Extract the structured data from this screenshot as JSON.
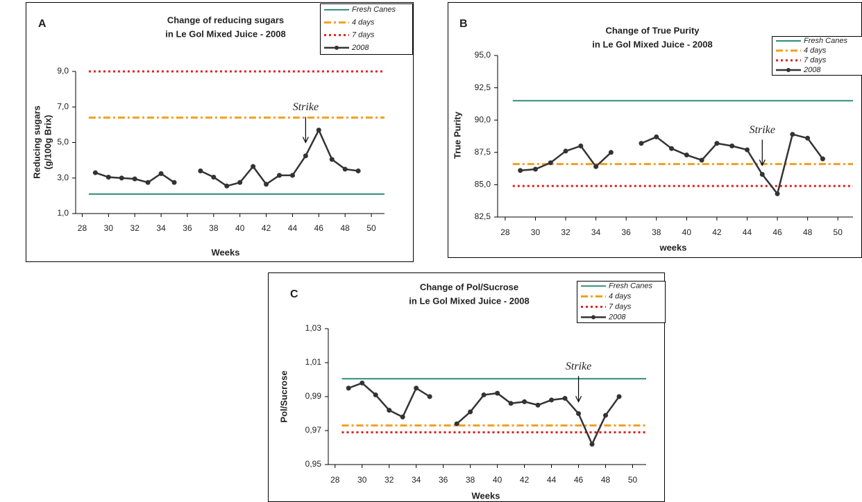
{
  "chart_data": [
    {
      "type": "line",
      "panel": "A",
      "title": [
        "Change of reducing sugars",
        "in Le Gol Mixed Juice - 2008"
      ],
      "xlabel": "Weeks",
      "ylabel": [
        "Reducing sugars",
        "(g/100g Brix)"
      ],
      "xlim": [
        27.5,
        51
      ],
      "xticks": [
        28,
        30,
        32,
        34,
        36,
        38,
        40,
        42,
        44,
        46,
        48,
        50
      ],
      "ylim": [
        1,
        9
      ],
      "yticks": [
        {
          "value": 1,
          "label": "1,0"
        },
        {
          "value": 3,
          "label": "3,0"
        },
        {
          "value": 5,
          "label": "5,0"
        },
        {
          "value": 7,
          "label": "7,0"
        },
        {
          "value": 9,
          "label": "9,0"
        }
      ],
      "legend": "upper right",
      "series": [
        {
          "name": "Fresh Canes",
          "color": "#2e8b7a",
          "style": "solid",
          "x": [
            28.5,
            51
          ],
          "values": [
            2.1,
            2.1
          ]
        },
        {
          "name": "4 days",
          "color": "#f0a020",
          "style": "dashdot",
          "x": [
            28.5,
            51
          ],
          "values": [
            6.4,
            6.4
          ]
        },
        {
          "name": "7 days",
          "color": "#e02020",
          "style": "dotted",
          "x": [
            28.5,
            51
          ],
          "values": [
            9.0,
            9.0
          ]
        },
        {
          "name": "2008",
          "color": "#333333",
          "style": "marker",
          "x": [
            29,
            30,
            31,
            32,
            33,
            34,
            35,
            36,
            37,
            38,
            39,
            40,
            41,
            42,
            43,
            44,
            45,
            46,
            47,
            48,
            49
          ],
          "values": [
            3.3,
            3.05,
            3.0,
            2.95,
            2.75,
            3.25,
            2.75,
            null,
            3.4,
            3.05,
            2.55,
            2.75,
            3.65,
            2.65,
            3.15,
            3.15,
            4.25,
            5.7,
            4.05,
            3.5,
            3.4
          ]
        }
      ],
      "annotation": {
        "text": "Strike",
        "x": 45,
        "y": 5.0
      }
    },
    {
      "type": "line",
      "panel": "B",
      "title": [
        "Change of True Purity",
        "in Le Gol Mixed Juice - 2008"
      ],
      "xlabel": "weeks",
      "ylabel": [
        "True Purity"
      ],
      "xlim": [
        27.5,
        51
      ],
      "xticks": [
        28,
        30,
        32,
        34,
        36,
        38,
        40,
        42,
        44,
        46,
        48,
        50
      ],
      "ylim": [
        82.5,
        95
      ],
      "yticks": [
        {
          "value": 82.5,
          "label": "82,5"
        },
        {
          "value": 85,
          "label": "85,0"
        },
        {
          "value": 87.5,
          "label": "87,5"
        },
        {
          "value": 90,
          "label": "90,0"
        },
        {
          "value": 92.5,
          "label": "92,5"
        },
        {
          "value": 95,
          "label": "95,0"
        }
      ],
      "legend": "upper right",
      "series": [
        {
          "name": "Fresh Canes",
          "color": "#2e8b7a",
          "style": "solid",
          "x": [
            28.5,
            51
          ],
          "values": [
            91.5,
            91.5
          ]
        },
        {
          "name": "4 days",
          "color": "#f0a020",
          "style": "dashdot",
          "x": [
            28.5,
            51
          ],
          "values": [
            86.6,
            86.6
          ]
        },
        {
          "name": "7 days",
          "color": "#e02020",
          "style": "dotted",
          "x": [
            28.5,
            51
          ],
          "values": [
            84.9,
            84.9
          ]
        },
        {
          "name": "2008",
          "color": "#333333",
          "style": "marker",
          "x": [
            29,
            30,
            31,
            32,
            33,
            34,
            35,
            36,
            37,
            38,
            39,
            40,
            41,
            42,
            43,
            44,
            45,
            46,
            47,
            48,
            49
          ],
          "values": [
            86.1,
            86.2,
            86.7,
            87.6,
            88.0,
            86.4,
            87.5,
            null,
            88.2,
            88.7,
            87.8,
            87.3,
            86.9,
            88.2,
            88.0,
            87.7,
            85.8,
            84.3,
            88.9,
            88.6,
            87.0
          ]
        }
      ],
      "annotation": {
        "text": "Strike",
        "x": 45,
        "y": 86.5
      }
    },
    {
      "type": "line",
      "panel": "C",
      "title": [
        "Change of Pol/Sucrose",
        "in Le Gol Mixed Juice - 2008"
      ],
      "xlabel": "Weeks",
      "ylabel": [
        "Pol/Sucrose"
      ],
      "xlim": [
        27.5,
        51
      ],
      "xticks": [
        28,
        30,
        32,
        34,
        36,
        38,
        40,
        42,
        44,
        46,
        48,
        50
      ],
      "ylim": [
        0.95,
        1.03
      ],
      "yticks": [
        {
          "value": 0.95,
          "label": "0,95"
        },
        {
          "value": 0.97,
          "label": "0,97"
        },
        {
          "value": 0.99,
          "label": "0,99"
        },
        {
          "value": 1.01,
          "label": "1,01"
        },
        {
          "value": 1.03,
          "label": "1,03"
        }
      ],
      "legend": "upper right",
      "series": [
        {
          "name": "Fresh Canes",
          "color": "#2e8b7a",
          "style": "solid",
          "x": [
            28.5,
            51
          ],
          "values": [
            1.0005,
            1.0005
          ]
        },
        {
          "name": "4 days",
          "color": "#f0a020",
          "style": "dashdot",
          "x": [
            28.5,
            51
          ],
          "values": [
            0.973,
            0.973
          ]
        },
        {
          "name": "7 days",
          "color": "#e02020",
          "style": "dotted",
          "x": [
            28.5,
            51
          ],
          "values": [
            0.969,
            0.969
          ]
        },
        {
          "name": "2008",
          "color": "#333333",
          "style": "marker",
          "x": [
            29,
            30,
            31,
            32,
            33,
            34,
            35,
            36,
            37,
            38,
            39,
            40,
            41,
            42,
            43,
            44,
            45,
            46,
            47,
            48,
            49
          ],
          "values": [
            0.995,
            0.998,
            0.991,
            0.982,
            0.978,
            0.995,
            0.99,
            null,
            0.974,
            0.981,
            0.991,
            0.992,
            0.986,
            0.987,
            0.985,
            0.988,
            0.989,
            0.98,
            0.962,
            0.979,
            0.99
          ]
        }
      ],
      "annotation": {
        "text": "Strike",
        "x": 46,
        "y": 0.987
      }
    }
  ]
}
